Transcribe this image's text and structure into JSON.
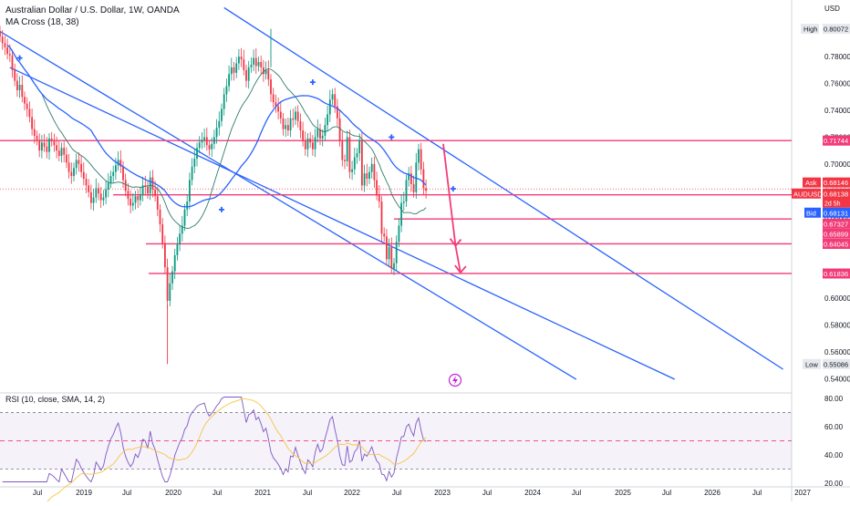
{
  "header": {
    "title": "Australian Dollar / U.S. Dollar, 1W, OANDA",
    "indicator": "MA Cross (18, 38)"
  },
  "rsi_header": "RSI (10, close, SMA, 14, 2)",
  "price_scale": {
    "currency": "USD",
    "ticks": [
      "0.78000",
      "0.76000",
      "0.74000",
      "0.72000",
      "0.70000",
      "0.68000",
      "0.66000",
      "0.64000",
      "0.62000",
      "0.60000",
      "0.58000",
      "0.56000",
      "0.54000"
    ],
    "tick_values": [
      0.78,
      0.76,
      0.74,
      0.72,
      0.7,
      0.68,
      0.66,
      0.64,
      0.62,
      0.6,
      0.58,
      0.56,
      0.54
    ]
  },
  "rsi_scale": {
    "ticks": [
      "80.00",
      "60.00",
      "40.00",
      "20.00"
    ],
    "tick_values": [
      80,
      60,
      40,
      20
    ]
  },
  "badges": {
    "high": {
      "label": "High",
      "value": "0.80072",
      "price": 0.80072
    },
    "low": {
      "label": "Low",
      "value": "0.55086",
      "price": 0.55086
    },
    "ask": {
      "label": "Ask",
      "value": "0.68146",
      "price": 0.68146
    },
    "symbol": {
      "label": "AUDUSD",
      "value": "0.68138",
      "sub": "2d 5h",
      "price": 0.68138
    },
    "bid": {
      "label": "Bid",
      "value": "0.68131",
      "price": 0.68131
    }
  },
  "levels": [
    {
      "label": "0.71744",
      "price": 0.71744
    },
    {
      "label": "0.67327",
      "price": 0.67327
    },
    {
      "label": "0.65899",
      "price": 0.65899
    },
    {
      "label": "0.64045",
      "price": 0.64045
    },
    {
      "label": "0.61836",
      "price": 0.61836
    }
  ],
  "time_axis": {
    "labels": [
      "Jul",
      "2019",
      "Jul",
      "2020",
      "Jul",
      "2021",
      "Jul",
      "2022",
      "Jul",
      "2023",
      "Jul",
      "2024",
      "Jul",
      "2025",
      "Jul",
      "2026",
      "Jul",
      "2027"
    ]
  },
  "colors": {
    "candle_up": "#089981",
    "candle_down": "#f23645",
    "channel": "#2962ff",
    "level": "#f23c78",
    "ma_fast": "#2e7d6b",
    "ma_slow": "#2962ff",
    "rsi_line": "#7e57c2",
    "rsi_ma": "#f5c542"
  },
  "chart_data": {
    "type": "candlestick",
    "interval": "1W",
    "ylim": [
      0.53,
      0.81
    ],
    "closes": [
      0.795,
      0.79,
      0.787,
      0.782,
      0.781,
      0.77,
      0.762,
      0.755,
      0.759,
      0.75,
      0.745,
      0.741,
      0.735,
      0.726,
      0.721,
      0.718,
      0.71,
      0.716,
      0.713,
      0.709,
      0.719,
      0.717,
      0.714,
      0.71,
      0.706,
      0.712,
      0.707,
      0.701,
      0.694,
      0.691,
      0.697,
      0.703,
      0.7,
      0.694,
      0.689,
      0.684,
      0.679,
      0.671,
      0.675,
      0.682,
      0.678,
      0.673,
      0.675,
      0.681,
      0.686,
      0.691,
      0.694,
      0.699,
      0.703,
      0.698,
      0.688,
      0.68,
      0.674,
      0.669,
      0.671,
      0.676,
      0.673,
      0.677,
      0.684,
      0.683,
      0.678,
      0.69,
      0.681,
      0.676,
      0.666,
      0.655,
      0.641,
      0.623,
      0.598,
      0.611,
      0.62,
      0.632,
      0.64,
      0.648,
      0.654,
      0.666,
      0.672,
      0.688,
      0.698,
      0.704,
      0.712,
      0.716,
      0.718,
      0.72,
      0.714,
      0.711,
      0.715,
      0.72,
      0.727,
      0.732,
      0.741,
      0.752,
      0.758,
      0.767,
      0.772,
      0.768,
      0.775,
      0.78,
      0.778,
      0.77,
      0.762,
      0.772,
      0.774,
      0.779,
      0.773,
      0.776,
      0.772,
      0.767,
      0.77,
      0.763,
      0.752,
      0.746,
      0.743,
      0.739,
      0.734,
      0.726,
      0.729,
      0.725,
      0.734,
      0.733,
      0.739,
      0.732,
      0.725,
      0.717,
      0.711,
      0.719,
      0.716,
      0.711,
      0.72,
      0.726,
      0.719,
      0.721,
      0.729,
      0.737,
      0.748,
      0.752,
      0.743,
      0.734,
      0.717,
      0.703,
      0.702,
      0.72,
      0.694,
      0.696,
      0.705,
      0.708,
      0.718,
      0.684,
      0.693,
      0.689,
      0.694,
      0.7,
      0.688,
      0.677,
      0.672,
      0.648,
      0.646,
      0.629,
      0.638,
      0.622,
      0.626,
      0.642,
      0.654,
      0.671,
      0.672,
      0.688,
      0.693,
      0.685,
      0.679,
      0.701,
      0.711,
      0.696,
      0.682,
      0.68
    ],
    "fast_ma_period": 18,
    "slow_ma_period": 38,
    "rsi": {
      "period": 10,
      "ylim": [
        20,
        82
      ],
      "upper_band": 70,
      "lower_band": 30,
      "mid": 50
    },
    "channels": [
      {
        "from": {
          "bar": -16,
          "price": 0.8165
        },
        "to": {
          "bar": 234,
          "price": 0.5395
        }
      },
      {
        "from": {
          "bar": 4,
          "price": 0.772
        },
        "to": {
          "bar": 274,
          "price": 0.5395
        }
      },
      {
        "from": {
          "bar": 91,
          "price": 0.8165
        },
        "to": {
          "bar": 318,
          "price": 0.547
        }
      }
    ],
    "projection": {
      "from": {
        "bar": 180,
        "price": 0.715
      },
      "mid": {
        "bar": 185,
        "price": 0.639
      },
      "to": {
        "bar": 187,
        "price": 0.619
      }
    }
  }
}
